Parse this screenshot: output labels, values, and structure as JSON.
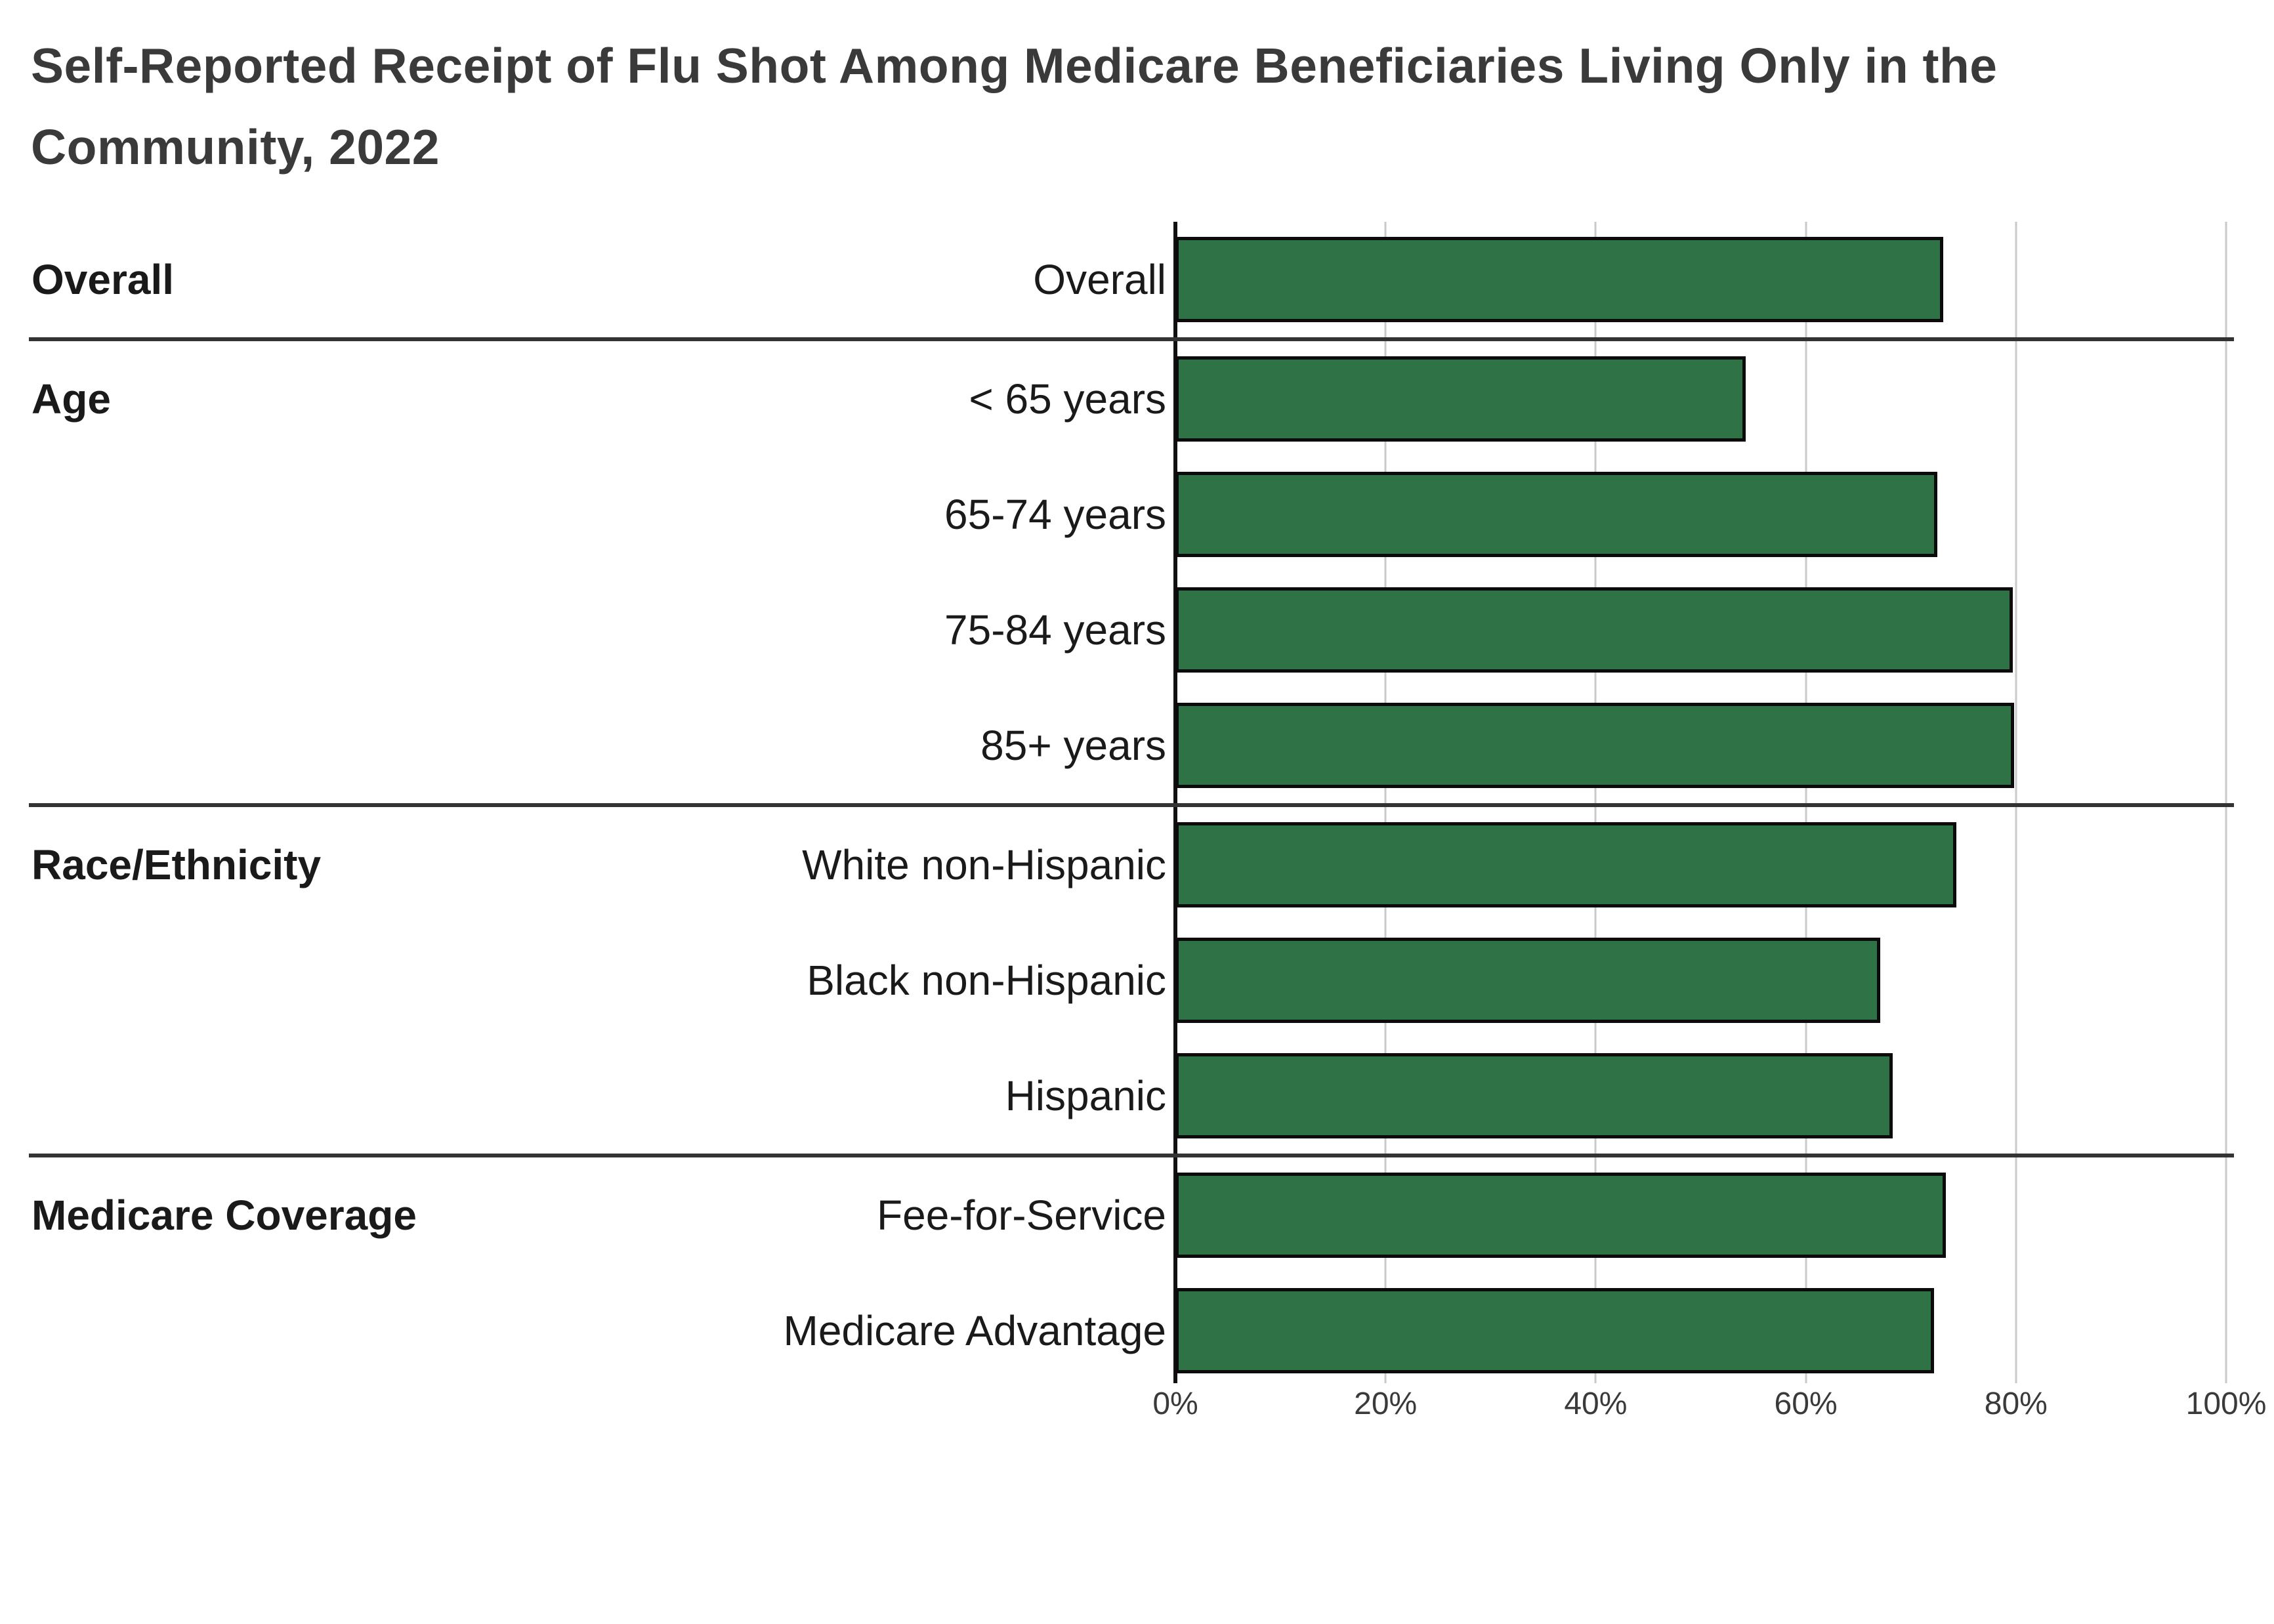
{
  "title": "Self-Reported Receipt of Flu Shot Among Medicare Beneficiaries Living Only in the Community, 2022",
  "colors": {
    "background": "#ffffff",
    "bar_fill": "#2f7246",
    "bar_border": "#0b0b0b",
    "gridline": "#c9c9c9",
    "axis_line": "#111111",
    "separator": "#333333",
    "title_text": "#3a3a3a",
    "label_text": "#1a1a1a",
    "tick_text": "#3a3a3a"
  },
  "chart_data": {
    "type": "bar",
    "orientation": "horizontal",
    "title": "Self-Reported Receipt of Flu Shot Among Medicare Beneficiaries Living Only in the Community, 2022",
    "xlabel": "",
    "ylabel": "",
    "unit": "%",
    "xlim": [
      0,
      100
    ],
    "x_ticks": [
      "0%",
      "20%",
      "40%",
      "60%",
      "80%",
      "100%"
    ],
    "grid": "vertical-only",
    "legend": "none",
    "groups": [
      {
        "label": "Overall",
        "categories": [
          "Overall"
        ],
        "values": [
          73.1
        ]
      },
      {
        "label": "Age",
        "categories": [
          "< 65 years",
          "65-74 years",
          "75-84 years",
          "85+ years"
        ],
        "values": [
          54.3,
          72.5,
          79.7,
          79.8
        ]
      },
      {
        "label": "Race/Ethnicity",
        "categories": [
          "White non-Hispanic",
          "Black non-Hispanic",
          "Hispanic"
        ],
        "values": [
          74.3,
          67.1,
          68.3
        ]
      },
      {
        "label": "Medicare Coverage",
        "categories": [
          "Fee-for-Service",
          "Medicare Advantage"
        ],
        "values": [
          73.3,
          72.2
        ]
      }
    ]
  }
}
